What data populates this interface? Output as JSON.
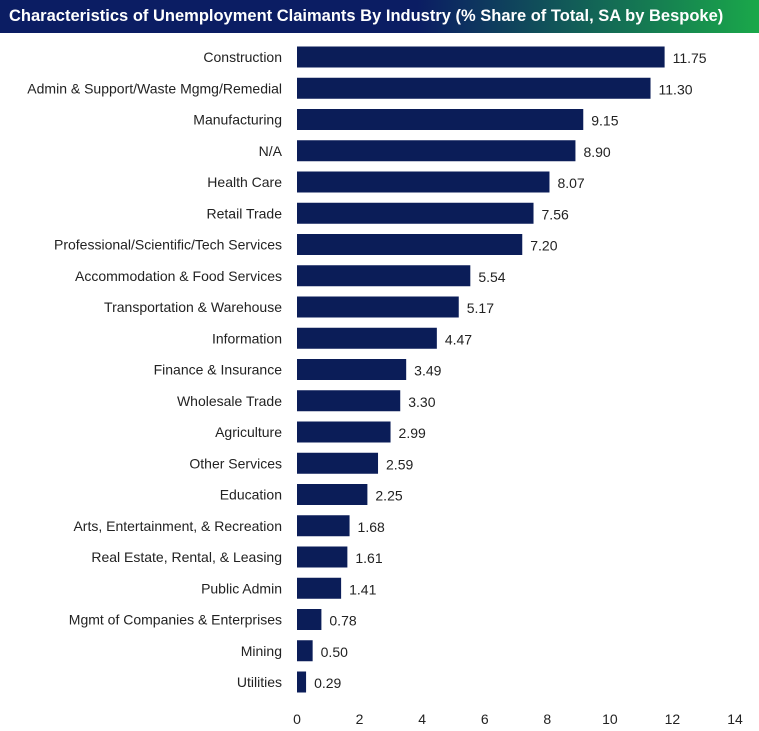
{
  "colors": {
    "title_gradient_start": "#0b1d63",
    "title_gradient_end": "#1aa84a",
    "bar": "#0b1d58"
  },
  "chart_data": {
    "type": "bar",
    "orientation": "horizontal",
    "title": "Characteristics of Unemployment Claimants By Industry (% Share of Total, SA by Bespoke)",
    "categories": [
      "Construction",
      "Admin & Support/Waste Mgmg/Remedial",
      "Manufacturing",
      "N/A",
      "Health Care",
      "Retail Trade",
      "Professional/Scientific/Tech Services",
      "Accommodation & Food Services",
      "Transportation & Warehouse",
      "Information",
      "Finance & Insurance",
      "Wholesale Trade",
      "Agriculture",
      "Other Services",
      "Education",
      "Arts, Entertainment, & Recreation",
      "Real Estate, Rental, & Leasing",
      "Public Admin",
      "Mgmt of Companies & Enterprises",
      "Mining",
      "Utilities"
    ],
    "values": [
      11.75,
      11.3,
      9.15,
      8.9,
      8.07,
      7.56,
      7.2,
      5.54,
      5.17,
      4.47,
      3.49,
      3.3,
      2.99,
      2.59,
      2.25,
      1.68,
      1.61,
      1.41,
      0.78,
      0.5,
      0.29
    ],
    "value_labels": [
      "11.75",
      "11.30",
      "9.15",
      "8.90",
      "8.07",
      "7.56",
      "7.20",
      "5.54",
      "5.17",
      "4.47",
      "3.49",
      "3.30",
      "2.99",
      "2.59",
      "2.25",
      "1.68",
      "1.61",
      "1.41",
      "0.78",
      "0.50",
      "0.29"
    ],
    "xlim": [
      0,
      14
    ],
    "xticks": [
      0,
      2,
      4,
      6,
      8,
      10,
      12,
      14
    ],
    "xlabel": "",
    "ylabel": "",
    "grid": false,
    "legend": "none"
  }
}
